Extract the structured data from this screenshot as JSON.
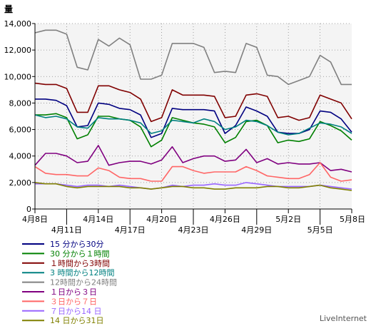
{
  "chart_data": {
    "type": "line",
    "title": "",
    "ylabel": "量",
    "xlabel": "",
    "ylim": [
      0,
      14000
    ],
    "grid": true,
    "legend_position": "bottom-left",
    "yticks": [
      "0",
      "2,000",
      "4,000",
      "6,000",
      "8,000",
      "10,000",
      "12,000",
      "14,000"
    ],
    "ytick_values": [
      0,
      2000,
      4000,
      6000,
      8000,
      10000,
      12000,
      14000
    ],
    "x": [
      "4月8日",
      "4月9日",
      "4月10日",
      "4月11日",
      "4月12日",
      "4月13日",
      "4月14日",
      "4月15日",
      "4月16日",
      "4月17日",
      "4月18日",
      "4月19日",
      "4月20日",
      "4月21日",
      "4月22日",
      "4月23日",
      "4月24日",
      "4月25日",
      "4月26日",
      "4月27日",
      "4月28日",
      "4月29日",
      "4月30日",
      "5月1日",
      "5月2日",
      "5月3日",
      "5月4日",
      "5月5日",
      "5月6日",
      "5月7日",
      "5月8日"
    ],
    "xticks": [
      {
        "index": 0,
        "label": "4月8日",
        "row": 1
      },
      {
        "index": 3,
        "label": "4月11日",
        "row": 2
      },
      {
        "index": 6,
        "label": "4月14日",
        "row": 1
      },
      {
        "index": 9,
        "label": "4月17日",
        "row": 2
      },
      {
        "index": 12,
        "label": "4月20日",
        "row": 1
      },
      {
        "index": 15,
        "label": "4月23日",
        "row": 2
      },
      {
        "index": 18,
        "label": "4月26日",
        "row": 1
      },
      {
        "index": 21,
        "label": "4月29日",
        "row": 2
      },
      {
        "index": 24,
        "label": "5月2日",
        "row": 1
      },
      {
        "index": 27,
        "label": "5月5日",
        "row": 2
      },
      {
        "index": 30,
        "label": "5月8日",
        "row": 1
      }
    ],
    "series": [
      {
        "name": "15 分から30分",
        "color": "#000080",
        "values": [
          8300,
          8300,
          8200,
          7800,
          6200,
          6300,
          8000,
          7900,
          7600,
          7500,
          7100,
          5400,
          5700,
          7600,
          7500,
          7500,
          7500,
          7400,
          5700,
          6300,
          7700,
          7400,
          7000,
          5800,
          5700,
          5700,
          6000,
          7400,
          7300,
          6800,
          5800
        ]
      },
      {
        "name": "30 分から１時間",
        "color": "#008000",
        "values": [
          7100,
          7100,
          7200,
          6900,
          5300,
          5600,
          7000,
          7000,
          6800,
          6700,
          6200,
          4700,
          5200,
          6900,
          6700,
          6500,
          6400,
          6200,
          5000,
          5400,
          6600,
          6700,
          6300,
          5000,
          5200,
          5100,
          5300,
          6600,
          6300,
          5900,
          5200
        ]
      },
      {
        "name": "１時間から3時間",
        "color": "#800000",
        "values": [
          9500,
          9400,
          9400,
          9100,
          7300,
          7300,
          9300,
          9300,
          9000,
          8800,
          8300,
          6600,
          6900,
          9000,
          8600,
          8600,
          8600,
          8500,
          6900,
          7000,
          8600,
          8700,
          8500,
          6900,
          7000,
          6700,
          6900,
          8600,
          8300,
          8000,
          6800
        ]
      },
      {
        "name": "3 時間から12時間",
        "color": "#008080",
        "values": [
          7100,
          6900,
          7000,
          6800,
          6200,
          6100,
          6900,
          6800,
          6800,
          6700,
          6500,
          5700,
          5900,
          6700,
          6600,
          6500,
          6800,
          6600,
          6000,
          6200,
          6700,
          6600,
          6300,
          5800,
          5600,
          5700,
          6100,
          6500,
          6400,
          6200,
          5700
        ]
      },
      {
        "name": "12時間から24時間",
        "color": "#808080",
        "values": [
          13300,
          13500,
          13500,
          13200,
          10700,
          10500,
          12800,
          12300,
          12900,
          12400,
          9800,
          9800,
          10100,
          12500,
          12500,
          12500,
          12200,
          10300,
          10400,
          10300,
          12500,
          12200,
          10100,
          10000,
          9400,
          9700,
          10000,
          11600,
          11100,
          9400,
          9400
        ]
      },
      {
        "name": "１日から３日",
        "color": "#800080",
        "values": [
          3300,
          4200,
          4200,
          4000,
          3500,
          3600,
          4800,
          3300,
          3500,
          3600,
          3600,
          3400,
          3700,
          4700,
          3500,
          3800,
          4000,
          4000,
          3600,
          3700,
          4500,
          3500,
          3800,
          3400,
          3500,
          3400,
          3400,
          3500,
          2900,
          3000,
          2800
        ]
      },
      {
        "name": "３日から７日",
        "color": "#ff6666",
        "values": [
          3200,
          2700,
          2600,
          2600,
          2500,
          2500,
          3100,
          2900,
          2400,
          2300,
          2300,
          2100,
          2100,
          3200,
          3200,
          2900,
          2700,
          2800,
          2800,
          2800,
          3200,
          2900,
          2500,
          2400,
          2300,
          2300,
          2600,
          3500,
          2400,
          2100,
          2200
        ]
      },
      {
        "name": "７日から14 日",
        "color": "#9966ff",
        "values": [
          1900,
          1900,
          1900,
          1800,
          1700,
          1800,
          1800,
          1700,
          1800,
          1700,
          1600,
          1500,
          1600,
          1800,
          1700,
          1800,
          1800,
          1900,
          1800,
          1800,
          2000,
          1900,
          1800,
          1700,
          1700,
          1700,
          1700,
          1800,
          1700,
          1600,
          1500
        ]
      },
      {
        "name": "14 日から31日",
        "color": "#808000",
        "values": [
          2000,
          1900,
          1900,
          1700,
          1600,
          1700,
          1700,
          1700,
          1700,
          1600,
          1600,
          1500,
          1600,
          1700,
          1700,
          1600,
          1600,
          1500,
          1500,
          1600,
          1600,
          1600,
          1700,
          1700,
          1600,
          1600,
          1700,
          1800,
          1600,
          1500,
          1400
        ]
      }
    ]
  },
  "credit": "LiveInternet"
}
